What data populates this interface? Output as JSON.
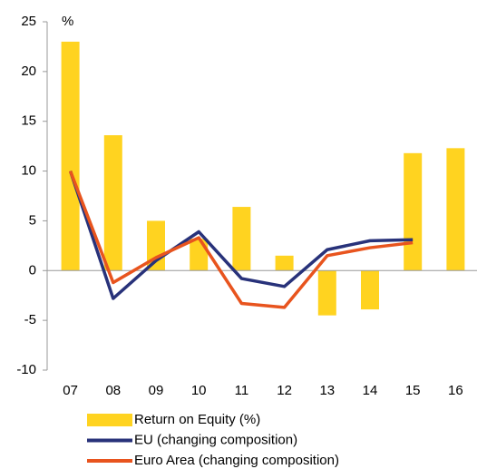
{
  "chart_data": {
    "type": "bar_line",
    "unit_label": "%",
    "categories": [
      "07",
      "08",
      "09",
      "10",
      "11",
      "12",
      "13",
      "14",
      "15",
      "16"
    ],
    "series": [
      {
        "name": "Return on Equity (%)",
        "type": "bar",
        "color": "#FFD320",
        "values": [
          23,
          13.6,
          5.0,
          3.2,
          6.4,
          1.5,
          -4.5,
          -3.9,
          11.8,
          12.3
        ]
      },
      {
        "name": "EU (changing composition)",
        "type": "line",
        "color": "#28327A",
        "values": [
          10,
          -2.8,
          1.0,
          3.9,
          -0.8,
          -1.6,
          2.1,
          3.0,
          3.1,
          null
        ]
      },
      {
        "name": "Euro Area (changing composition)",
        "type": "line",
        "color": "#E8541E",
        "values": [
          10,
          -1.2,
          1.3,
          3.3,
          -3.3,
          -3.7,
          1.5,
          2.3,
          2.8,
          null
        ]
      }
    ],
    "ylim": [
      -10,
      25
    ],
    "yticks": [
      -10,
      -5,
      0,
      5,
      10,
      15,
      20,
      25
    ],
    "legend": "bottom"
  }
}
